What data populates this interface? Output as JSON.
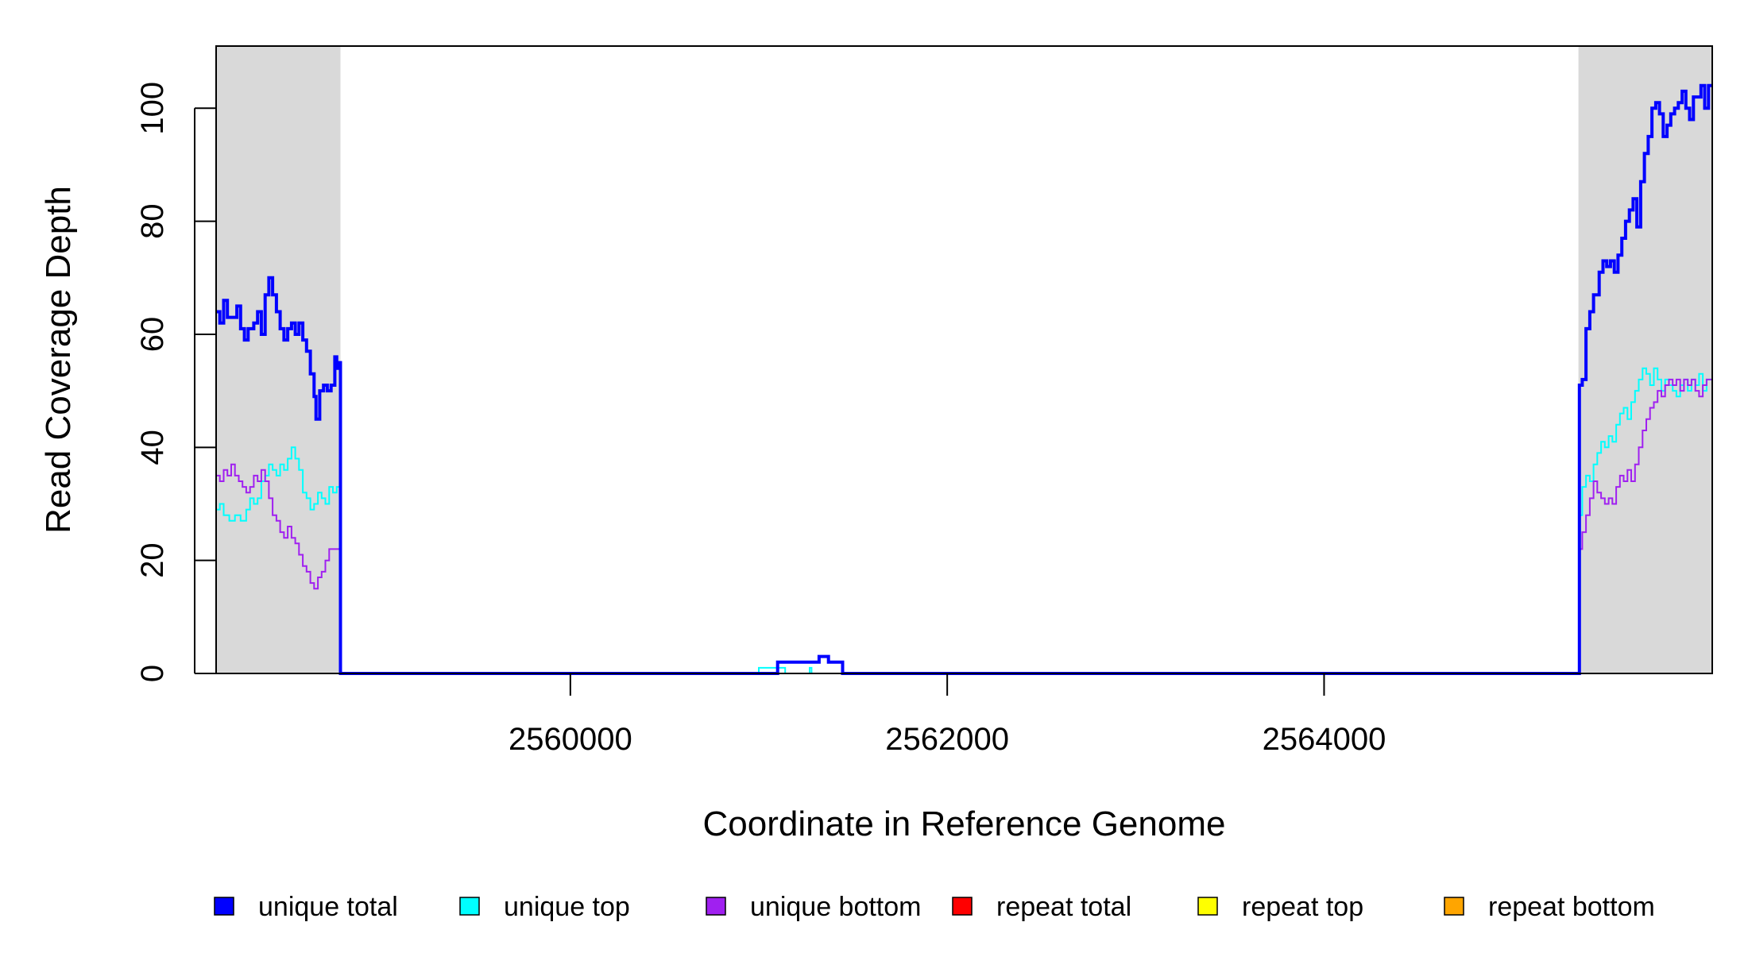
{
  "chart_data": {
    "type": "line",
    "title": "",
    "xlabel": "Coordinate in Reference Genome",
    "ylabel": "Read Coverage Depth",
    "xlim": [
      2558120,
      2566060
    ],
    "ylim": [
      0,
      111
    ],
    "x_ticks": [
      2560000,
      2562000,
      2564000
    ],
    "x_tick_labels": [
      "2560000",
      "2562000",
      "2564000"
    ],
    "y_ticks": [
      0,
      20,
      40,
      60,
      80,
      100
    ],
    "y_tick_labels": [
      "0",
      "20",
      "40",
      "60",
      "80",
      "100"
    ],
    "grid": false,
    "legend_position": "bottom",
    "shaded_regions": [
      {
        "x0": 2558120,
        "x1": 2558780,
        "color": "#d9d9d9"
      },
      {
        "x0": 2565350,
        "x1": 2566060,
        "color": "#d9d9d9"
      }
    ],
    "series": [
      {
        "name": "unique total",
        "color": "#0000ff",
        "points": [
          [
            2558120,
            64
          ],
          [
            2558140,
            62
          ],
          [
            2558160,
            66
          ],
          [
            2558180,
            63
          ],
          [
            2558210,
            63
          ],
          [
            2558230,
            65
          ],
          [
            2558250,
            61
          ],
          [
            2558270,
            59
          ],
          [
            2558290,
            61
          ],
          [
            2558320,
            62
          ],
          [
            2558340,
            64
          ],
          [
            2558360,
            60
          ],
          [
            2558380,
            67
          ],
          [
            2558400,
            70
          ],
          [
            2558420,
            67
          ],
          [
            2558440,
            64
          ],
          [
            2558460,
            61
          ],
          [
            2558480,
            59
          ],
          [
            2558500,
            61
          ],
          [
            2558520,
            62
          ],
          [
            2558540,
            60
          ],
          [
            2558560,
            62
          ],
          [
            2558580,
            59
          ],
          [
            2558600,
            57
          ],
          [
            2558620,
            53
          ],
          [
            2558640,
            49
          ],
          [
            2558650,
            45
          ],
          [
            2558670,
            50
          ],
          [
            2558690,
            51
          ],
          [
            2558710,
            50
          ],
          [
            2558730,
            51
          ],
          [
            2558750,
            56
          ],
          [
            2558760,
            54
          ],
          [
            2558775,
            55
          ],
          [
            2558780,
            0
          ],
          [
            2561000,
            0
          ],
          [
            2561100,
            2
          ],
          [
            2561280,
            2
          ],
          [
            2561320,
            3
          ],
          [
            2561370,
            2
          ],
          [
            2561440,
            2
          ],
          [
            2561445,
            0
          ],
          [
            2565350,
            0
          ],
          [
            2565355,
            51
          ],
          [
            2565370,
            52
          ],
          [
            2565390,
            61
          ],
          [
            2565410,
            64
          ],
          [
            2565430,
            67
          ],
          [
            2565460,
            71
          ],
          [
            2565480,
            73
          ],
          [
            2565500,
            72
          ],
          [
            2565520,
            73
          ],
          [
            2565540,
            71
          ],
          [
            2565560,
            74
          ],
          [
            2565580,
            77
          ],
          [
            2565600,
            80
          ],
          [
            2565620,
            82
          ],
          [
            2565640,
            84
          ],
          [
            2565660,
            79
          ],
          [
            2565680,
            87
          ],
          [
            2565700,
            92
          ],
          [
            2565720,
            95
          ],
          [
            2565740,
            100
          ],
          [
            2565760,
            101
          ],
          [
            2565780,
            99
          ],
          [
            2565800,
            95
          ],
          [
            2565820,
            97
          ],
          [
            2565840,
            99
          ],
          [
            2565860,
            100
          ],
          [
            2565880,
            101
          ],
          [
            2565900,
            103
          ],
          [
            2565920,
            100
          ],
          [
            2565940,
            98
          ],
          [
            2565960,
            102
          ],
          [
            2566000,
            104
          ],
          [
            2566020,
            100
          ],
          [
            2566040,
            104
          ],
          [
            2566060,
            104
          ]
        ]
      },
      {
        "name": "unique top",
        "color": "#00ffff",
        "points": [
          [
            2558120,
            29
          ],
          [
            2558140,
            30
          ],
          [
            2558160,
            28
          ],
          [
            2558190,
            27
          ],
          [
            2558220,
            28
          ],
          [
            2558250,
            27
          ],
          [
            2558280,
            29
          ],
          [
            2558300,
            31
          ],
          [
            2558320,
            30
          ],
          [
            2558340,
            31
          ],
          [
            2558360,
            34
          ],
          [
            2558380,
            35
          ],
          [
            2558400,
            37
          ],
          [
            2558420,
            36
          ],
          [
            2558440,
            35
          ],
          [
            2558460,
            37
          ],
          [
            2558480,
            36
          ],
          [
            2558500,
            38
          ],
          [
            2558520,
            40
          ],
          [
            2558540,
            38
          ],
          [
            2558560,
            36
          ],
          [
            2558580,
            32
          ],
          [
            2558600,
            31
          ],
          [
            2558620,
            29
          ],
          [
            2558640,
            30
          ],
          [
            2558660,
            32
          ],
          [
            2558680,
            31
          ],
          [
            2558700,
            30
          ],
          [
            2558720,
            33
          ],
          [
            2558740,
            32
          ],
          [
            2558760,
            33
          ],
          [
            2558780,
            0
          ],
          [
            2560980,
            0
          ],
          [
            2561000,
            1
          ],
          [
            2561120,
            1
          ],
          [
            2561140,
            0
          ],
          [
            2561260,
            0
          ],
          [
            2561270,
            1
          ],
          [
            2561280,
            0
          ],
          [
            2565350,
            0
          ],
          [
            2565355,
            28
          ],
          [
            2565370,
            33
          ],
          [
            2565390,
            35
          ],
          [
            2565410,
            34
          ],
          [
            2565430,
            37
          ],
          [
            2565450,
            39
          ],
          [
            2565470,
            41
          ],
          [
            2565490,
            40
          ],
          [
            2565510,
            42
          ],
          [
            2565530,
            41
          ],
          [
            2565550,
            44
          ],
          [
            2565570,
            46
          ],
          [
            2565590,
            47
          ],
          [
            2565610,
            45
          ],
          [
            2565630,
            48
          ],
          [
            2565650,
            50
          ],
          [
            2565670,
            52
          ],
          [
            2565690,
            54
          ],
          [
            2565710,
            53
          ],
          [
            2565730,
            51
          ],
          [
            2565750,
            54
          ],
          [
            2565770,
            52
          ],
          [
            2565790,
            50
          ],
          [
            2565810,
            52
          ],
          [
            2565830,
            51
          ],
          [
            2565850,
            50
          ],
          [
            2565870,
            49
          ],
          [
            2565890,
            51
          ],
          [
            2565910,
            52
          ],
          [
            2565930,
            50
          ],
          [
            2565950,
            52
          ],
          [
            2565970,
            51
          ],
          [
            2565990,
            53
          ],
          [
            2566010,
            50
          ],
          [
            2566030,
            52
          ],
          [
            2566060,
            52
          ]
        ]
      },
      {
        "name": "unique bottom",
        "color": "#a020f0",
        "points": [
          [
            2558120,
            35
          ],
          [
            2558140,
            34
          ],
          [
            2558160,
            36
          ],
          [
            2558180,
            35
          ],
          [
            2558200,
            37
          ],
          [
            2558220,
            35
          ],
          [
            2558240,
            34
          ],
          [
            2558260,
            33
          ],
          [
            2558280,
            32
          ],
          [
            2558300,
            33
          ],
          [
            2558320,
            35
          ],
          [
            2558340,
            34
          ],
          [
            2558360,
            36
          ],
          [
            2558380,
            34
          ],
          [
            2558400,
            31
          ],
          [
            2558420,
            28
          ],
          [
            2558440,
            27
          ],
          [
            2558460,
            25
          ],
          [
            2558480,
            24
          ],
          [
            2558500,
            26
          ],
          [
            2558520,
            24
          ],
          [
            2558540,
            23
          ],
          [
            2558560,
            21
          ],
          [
            2558580,
            19
          ],
          [
            2558600,
            18
          ],
          [
            2558620,
            16
          ],
          [
            2558640,
            15
          ],
          [
            2558660,
            17
          ],
          [
            2558680,
            18
          ],
          [
            2558700,
            20
          ],
          [
            2558720,
            22
          ],
          [
            2558760,
            22
          ],
          [
            2558780,
            0
          ],
          [
            2565350,
            0
          ],
          [
            2565355,
            22
          ],
          [
            2565370,
            25
          ],
          [
            2565390,
            28
          ],
          [
            2565410,
            31
          ],
          [
            2565430,
            34
          ],
          [
            2565450,
            32
          ],
          [
            2565470,
            31
          ],
          [
            2565490,
            30
          ],
          [
            2565510,
            31
          ],
          [
            2565530,
            30
          ],
          [
            2565550,
            33
          ],
          [
            2565570,
            35
          ],
          [
            2565590,
            34
          ],
          [
            2565610,
            36
          ],
          [
            2565630,
            34
          ],
          [
            2565650,
            37
          ],
          [
            2565670,
            40
          ],
          [
            2565690,
            43
          ],
          [
            2565710,
            45
          ],
          [
            2565730,
            47
          ],
          [
            2565750,
            48
          ],
          [
            2565770,
            50
          ],
          [
            2565790,
            49
          ],
          [
            2565810,
            51
          ],
          [
            2565830,
            52
          ],
          [
            2565850,
            51
          ],
          [
            2565870,
            52
          ],
          [
            2565890,
            50
          ],
          [
            2565910,
            52
          ],
          [
            2565930,
            51
          ],
          [
            2565950,
            52
          ],
          [
            2565970,
            50
          ],
          [
            2565990,
            49
          ],
          [
            2566010,
            51
          ],
          [
            2566030,
            52
          ],
          [
            2566060,
            52
          ]
        ]
      },
      {
        "name": "repeat total",
        "color": "#ff0000",
        "points": [
          [
            2558120,
            0
          ],
          [
            2566060,
            0
          ]
        ]
      },
      {
        "name": "repeat top",
        "color": "#ffff00",
        "points": [
          [
            2558120,
            0
          ],
          [
            2566060,
            0
          ]
        ]
      },
      {
        "name": "repeat bottom",
        "color": "#ffa500",
        "points": [
          [
            2558120,
            0
          ],
          [
            2566060,
            0
          ]
        ]
      }
    ]
  }
}
